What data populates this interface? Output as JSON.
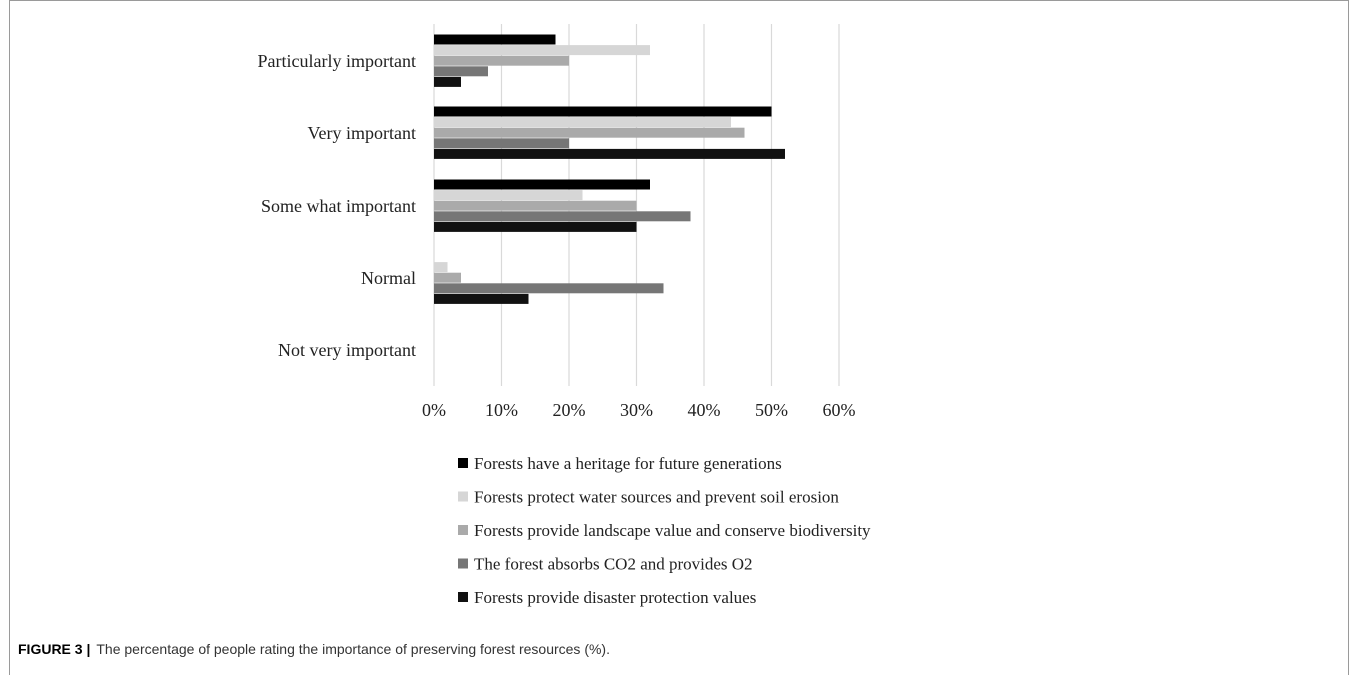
{
  "caption": {
    "label": "FIGURE 3 |",
    "text": "The percentage of people rating the importance of preserving forest resources (%)."
  },
  "chart_data": {
    "type": "bar",
    "orientation": "horizontal",
    "categories": [
      "Particularly important",
      "Very important",
      "Some what important",
      "Normal",
      "Not very important"
    ],
    "xlim": [
      0,
      60
    ],
    "ticks": [
      "0%",
      "10%",
      "20%",
      "30%",
      "40%",
      "50%",
      "60%"
    ],
    "grid": true,
    "legend_placement": "bottom",
    "series": [
      {
        "name": "Forests have a heritage for future generations",
        "color": "#000000",
        "values": [
          18,
          50,
          32,
          0,
          0
        ]
      },
      {
        "name": "Forests protect water sources and prevent soil erosion",
        "color": "#d6d6d6",
        "values": [
          32,
          44,
          22,
          2,
          0
        ]
      },
      {
        "name": "Forests provide landscape value and conserve biodiversity",
        "color": "#aaaaaa",
        "values": [
          20,
          46,
          30,
          4,
          0
        ]
      },
      {
        "name": "The forest absorbs CO2 and provides O2",
        "color": "#767676",
        "values": [
          8,
          20,
          38,
          34,
          0
        ]
      },
      {
        "name": "Forests provide disaster protection values",
        "color": "#111111",
        "values": [
          4,
          52,
          30,
          14,
          0
        ]
      }
    ]
  }
}
